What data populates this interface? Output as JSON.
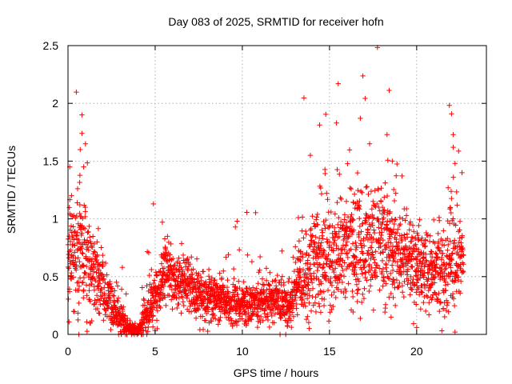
{
  "chart_data": {
    "type": "scatter",
    "title": "Day 083 of 2025, SRMTID for receiver hofn",
    "xlabel": "GPS time / hours",
    "ylabel": "SRMTID / TECUs",
    "xlim": [
      0,
      24
    ],
    "ylim": [
      0,
      2.5
    ],
    "x_ticks": [
      0,
      5,
      10,
      15,
      20
    ],
    "x_tick_labels": [
      "0",
      "5",
      "10",
      "15",
      "20"
    ],
    "y_ticks": [
      0,
      0.5,
      1,
      1.5,
      2,
      2.5
    ],
    "y_tick_labels": [
      "0",
      "0.5",
      "1",
      "1.5",
      "2",
      "2.5"
    ],
    "grid": true,
    "marker": "plus",
    "color": "#ff0000",
    "series": [
      {
        "name": "SRMTID",
        "profile": [
          {
            "x": 0.0,
            "level": 0.75,
            "spread": 0.55
          },
          {
            "x": 0.5,
            "level": 0.7,
            "spread": 0.5
          },
          {
            "x": 1.0,
            "level": 0.65,
            "spread": 0.5
          },
          {
            "x": 1.5,
            "level": 0.5,
            "spread": 0.3
          },
          {
            "x": 2.0,
            "level": 0.4,
            "spread": 0.25
          },
          {
            "x": 2.5,
            "level": 0.25,
            "spread": 0.2
          },
          {
            "x": 3.0,
            "level": 0.15,
            "spread": 0.15
          },
          {
            "x": 3.5,
            "level": 0.05,
            "spread": 0.05
          },
          {
            "x": 4.0,
            "level": 0.03,
            "spread": 0.03
          },
          {
            "x": 4.4,
            "level": 0.15,
            "spread": 0.15
          },
          {
            "x": 4.8,
            "level": 0.25,
            "spread": 0.2
          },
          {
            "x": 5.2,
            "level": 0.35,
            "spread": 0.2
          },
          {
            "x": 5.5,
            "level": 0.55,
            "spread": 0.25
          },
          {
            "x": 6.0,
            "level": 0.5,
            "spread": 0.2
          },
          {
            "x": 7.0,
            "level": 0.4,
            "spread": 0.2
          },
          {
            "x": 8.0,
            "level": 0.3,
            "spread": 0.18
          },
          {
            "x": 9.0,
            "level": 0.3,
            "spread": 0.2
          },
          {
            "x": 10.0,
            "level": 0.25,
            "spread": 0.15
          },
          {
            "x": 11.0,
            "level": 0.28,
            "spread": 0.15
          },
          {
            "x": 12.0,
            "level": 0.3,
            "spread": 0.17
          },
          {
            "x": 12.8,
            "level": 0.25,
            "spread": 0.2
          },
          {
            "x": 13.2,
            "level": 0.45,
            "spread": 0.35
          },
          {
            "x": 14.0,
            "level": 0.6,
            "spread": 0.4
          },
          {
            "x": 15.0,
            "level": 0.65,
            "spread": 0.45
          },
          {
            "x": 16.0,
            "level": 0.8,
            "spread": 0.5
          },
          {
            "x": 17.0,
            "level": 0.75,
            "spread": 0.45
          },
          {
            "x": 18.0,
            "level": 0.8,
            "spread": 0.5
          },
          {
            "x": 19.0,
            "level": 0.7,
            "spread": 0.35
          },
          {
            "x": 20.0,
            "level": 0.6,
            "spread": 0.3
          },
          {
            "x": 21.0,
            "level": 0.55,
            "spread": 0.3
          },
          {
            "x": 22.0,
            "level": 0.6,
            "spread": 0.4
          },
          {
            "x": 22.7,
            "level": 0.65,
            "spread": 0.4
          }
        ],
        "sample_interval_hours": 0.012,
        "notable_points": [
          {
            "x": 15.5,
            "y": 2.17
          },
          {
            "x": 22.0,
            "y": 1.91
          },
          {
            "x": 0.8,
            "y": 1.9
          },
          {
            "x": 15.4,
            "y": 1.83
          },
          {
            "x": 18.3,
            "y": 1.73
          },
          {
            "x": 22.1,
            "y": 1.73
          },
          {
            "x": 0.8,
            "y": 1.74
          },
          {
            "x": 17.3,
            "y": 1.65
          },
          {
            "x": 1.0,
            "y": 1.65
          },
          {
            "x": 22.1,
            "y": 1.62
          },
          {
            "x": 0.7,
            "y": 1.6
          },
          {
            "x": 13.9,
            "y": 1.55
          },
          {
            "x": 18.6,
            "y": 1.5
          },
          {
            "x": 22.2,
            "y": 1.48
          },
          {
            "x": 0.1,
            "y": 1.45
          },
          {
            "x": 0.9,
            "y": 1.45
          },
          {
            "x": 22.6,
            "y": 1.4
          },
          {
            "x": 4.9,
            "y": 1.13
          },
          {
            "x": 9.7,
            "y": 0.98
          },
          {
            "x": 9.6,
            "y": 0.93
          },
          {
            "x": 22.2,
            "y": 0.02
          },
          {
            "x": 20.0,
            "y": 0.06
          },
          {
            "x": 3.3,
            "y": 0.0
          },
          {
            "x": 3.8,
            "y": 0.0
          },
          {
            "x": 4.2,
            "y": 0.0
          }
        ]
      }
    ]
  }
}
